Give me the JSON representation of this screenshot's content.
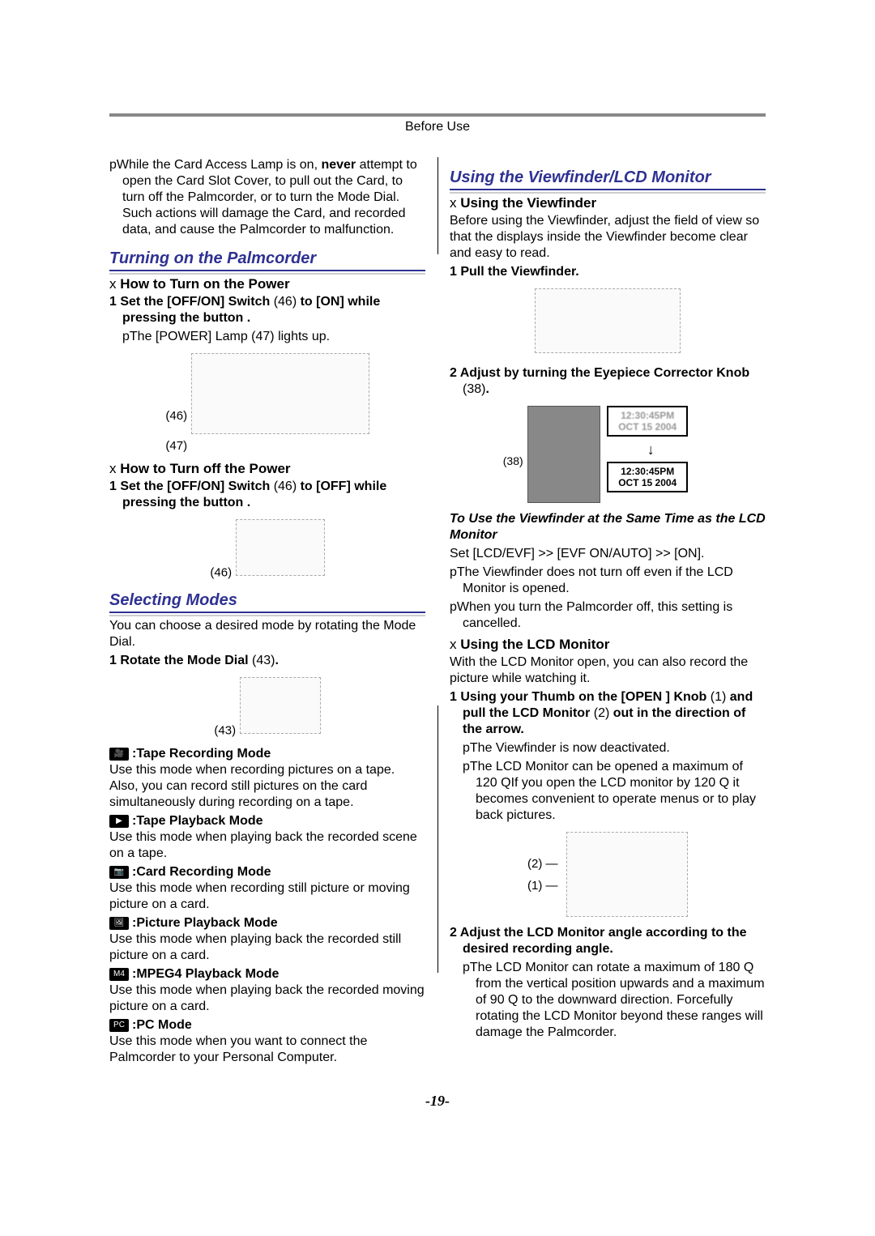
{
  "header": "Before Use",
  "page_number": "-19-",
  "left": {
    "warning_lines": [
      "pWhile the Card Access Lamp is on, ",
      "attempt to open the Card Slot Cover, to pull out the Card, to turn off the Palmcorder, or to turn the Mode Dial. Such actions will damage the Card, and recorded data, and cause the Palmcorder to malfunction."
    ],
    "never": "never",
    "turning_on_heading": "Turning on the Palmcorder",
    "how_on_heading": "How to Turn on the Power",
    "step_on_1a": "Set the [OFF/ON] Switch ",
    "step_on_1b": " to [ON] while pressing the button    .",
    "ref46a": "(46)",
    "power_lamp_line_a": "pThe [POWER] Lamp ",
    "ref47": "(47)",
    "power_lamp_line_b": " lights up.",
    "fig1_label_46": "(46)",
    "fig1_label_47": "(47)",
    "how_off_heading": "How to Turn off the Power",
    "step_off_1a": "Set the [OFF/ON] Switch ",
    "step_off_1b": " to [OFF] while pressing the button    .",
    "fig2_label_46": "(46)",
    "selecting_heading": "Selecting Modes",
    "selecting_intro": "You can choose a desired mode by rotating the Mode Dial.",
    "rotate_step_a": "Rotate the Mode Dial ",
    "ref43": "(43)",
    "rotate_step_b": ".",
    "fig3_label_43": "(43)",
    "modes": [
      {
        "icon": "🎥",
        "title": ":Tape Recording Mode",
        "desc": "Use this mode when recording pictures on a tape. Also, you can record still pictures on the card simultaneously during recording on a tape."
      },
      {
        "icon": "▶",
        "title": ":Tape Playback Mode",
        "desc": "Use this mode when playing back the recorded scene on a tape."
      },
      {
        "icon": "📷",
        "title": ":Card Recording Mode",
        "desc": "Use this mode when recording still picture or moving picture on a card."
      },
      {
        "icon": "🖼",
        "title": ":Picture Playback Mode",
        "desc": "Use this mode when playing back the recorded still picture on a card."
      },
      {
        "icon": "M4",
        "title": ":MPEG4 Playback Mode",
        "desc": "Use this mode when playing back the recorded moving picture on a card."
      },
      {
        "icon": "PC",
        "title": ":PC Mode",
        "desc": "Use this mode when you want to connect the Palmcorder to your Personal Computer."
      }
    ]
  },
  "right": {
    "vf_lcd_heading": "Using the Viewfinder/LCD Monitor",
    "vf_heading": "Using the Viewfinder",
    "vf_intro": "Before using the Viewfinder, adjust the field of view so that the displays inside the Viewfinder become clear and easy to read.",
    "vf_step1": "Pull the Viewfinder.",
    "vf_step2a": "Adjust by turning the Eyepiece Corrector Knob ",
    "ref38": "(38)",
    "knob_label": "(38)",
    "vf_step2b": ".",
    "evf_time": "12:30:45PM",
    "evf_date": "OCT 15 2004",
    "to_use_heading": "To Use the Viewfinder at the Same Time as the LCD Monitor",
    "set_line": "Set [LCD/EVF] >> [EVF ON/AUTO] >> [ON].",
    "note1": "pThe Viewfinder does not turn off even if the LCD Monitor is opened.",
    "note2": "pWhen you turn the Palmcorder off, this setting is cancelled.",
    "lcd_heading": "Using the LCD Monitor",
    "lcd_intro": "With the LCD Monitor open, you can also record the picture while watching it.",
    "lcd_step1a": "Using your Thumb on the [OPEN    ] Knob ",
    "ref1": "(1)",
    "lcd_step1b": " and pull the LCD Monitor ",
    "ref2": "(2)",
    "lcd_step1c": " out in the direction of the arrow.",
    "lcd_sub1": "pThe Viewfinder is now deactivated.",
    "lcd_sub2": "pThe LCD Monitor can be opened a maximum of 120 QIf you open the LCD monitor by 120 Q it becomes convenient to operate menus or to play back pictures.",
    "lcd_fig_2": "(2)",
    "lcd_fig_1": "(1)",
    "lcd_step2": "Adjust the LCD Monitor angle according to the desired recording angle.",
    "lcd_angle_note": "pThe LCD Monitor can rotate a maximum of 180 Q   from the vertical position upwards and a maximum of 90 Q   to the downward direction. Forcefully rotating the LCD Monitor beyond these ranges will damage the Palmcorder."
  }
}
